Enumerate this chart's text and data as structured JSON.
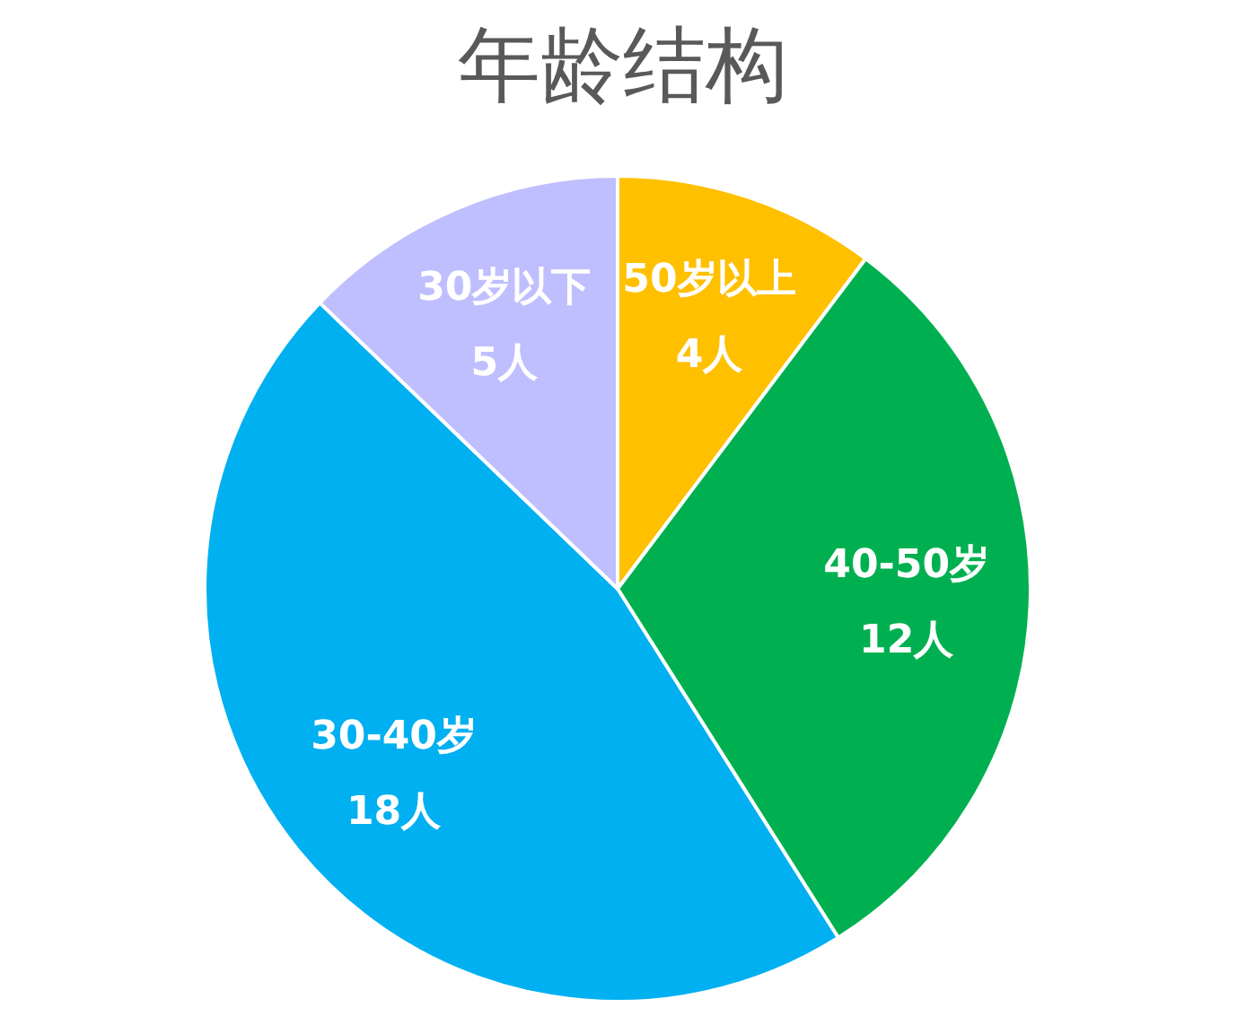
{
  "chart_data": {
    "type": "pie",
    "title": "年龄结构",
    "categories": [
      "50岁以上",
      "40-50岁",
      "30-40岁",
      "30岁以下"
    ],
    "values": [
      4,
      12,
      18,
      5
    ],
    "value_labels": [
      "4人",
      "12人",
      "18人",
      "5人"
    ],
    "colors": [
      "#ffc000",
      "#00b050",
      "#00b0f0",
      "#bfbfff"
    ]
  }
}
